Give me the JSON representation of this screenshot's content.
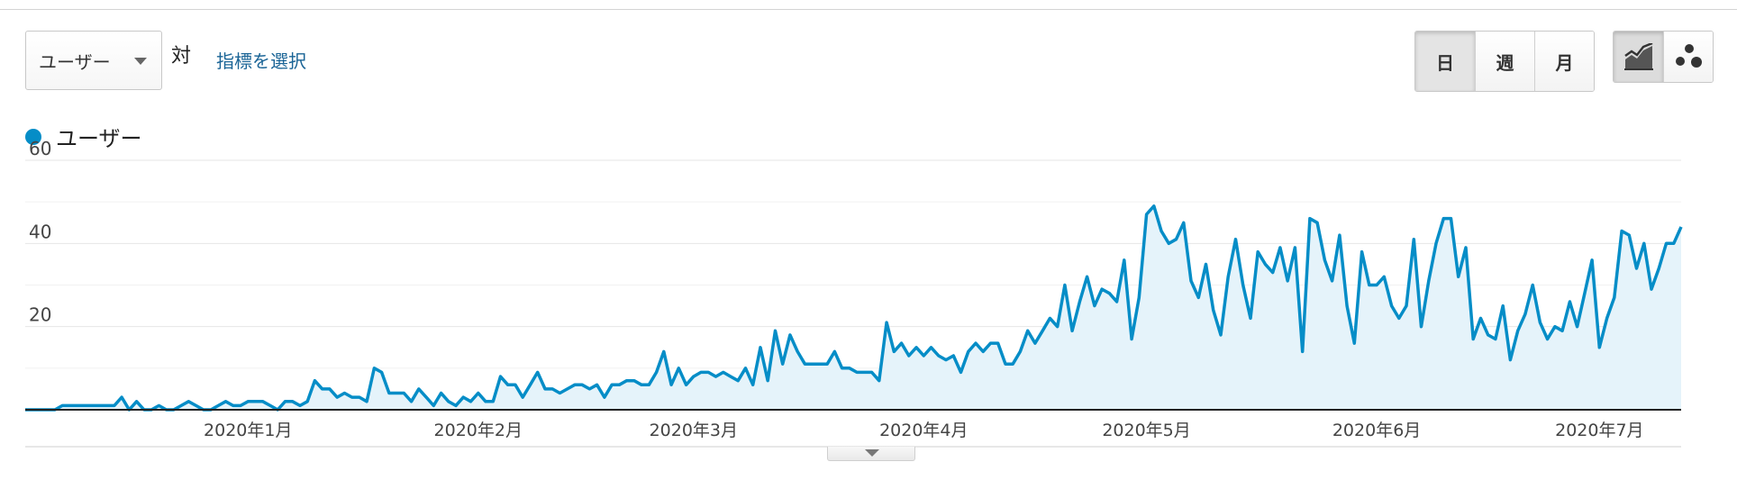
{
  "controls": {
    "metric_select": "ユーザー",
    "vs_label": "対",
    "select_metric_link": "指標を選択",
    "period_buttons": [
      "日",
      "週",
      "月"
    ],
    "active_period": "日",
    "view_icons": [
      "line-chart-icon",
      "motion-chart-icon"
    ]
  },
  "colors": {
    "series": "#058dc7",
    "fill": "#e5f3fa",
    "link": "#1a6496"
  },
  "chart_data": {
    "type": "area",
    "series": [
      {
        "name": "ユーザー",
        "values": [
          0,
          0,
          0,
          0,
          0,
          1,
          1,
          1,
          1,
          1,
          1,
          1,
          1,
          3,
          0,
          2,
          0,
          0,
          1,
          0,
          0,
          1,
          2,
          1,
          0,
          0,
          1,
          2,
          1,
          1,
          2,
          2,
          2,
          1,
          0,
          2,
          2,
          1,
          2,
          7,
          5,
          5,
          3,
          4,
          3,
          3,
          2,
          10,
          9,
          4,
          4,
          4,
          2,
          5,
          3,
          1,
          4,
          2,
          1,
          3,
          2,
          4,
          2,
          2,
          8,
          6,
          6,
          3,
          6,
          9,
          5,
          5,
          4,
          5,
          6,
          6,
          5,
          6,
          3,
          6,
          6,
          7,
          7,
          6,
          6,
          9,
          14,
          6,
          10,
          6,
          8,
          9,
          9,
          8,
          9,
          8,
          7,
          10,
          6,
          15,
          7,
          19,
          11,
          18,
          14,
          11,
          11,
          11,
          11,
          14,
          10,
          10,
          9,
          9,
          9,
          7,
          21,
          14,
          16,
          13,
          15,
          13,
          15,
          13,
          12,
          13,
          9,
          14,
          16,
          14,
          16,
          16,
          11,
          11,
          14,
          19,
          16,
          19,
          22,
          20,
          30,
          19,
          26,
          32,
          25,
          29,
          28,
          26,
          36,
          17,
          27,
          47,
          49,
          43,
          40,
          41,
          45,
          31,
          27,
          35,
          24,
          18,
          32,
          41,
          30,
          22,
          38,
          35,
          33,
          39,
          31,
          39,
          14,
          46,
          45,
          36,
          31,
          42,
          25,
          16,
          38,
          30,
          30,
          32,
          25,
          22,
          25,
          41,
          20,
          31,
          40,
          46,
          46,
          32,
          39,
          17,
          22,
          18,
          17,
          25,
          12,
          19,
          23,
          30,
          21,
          17,
          20,
          19,
          26,
          20,
          28,
          36,
          15,
          22,
          27,
          43,
          42,
          34,
          40,
          29,
          34,
          40,
          40,
          44
        ]
      }
    ],
    "y_ticks": [
      20,
      40,
      60
    ],
    "ylim": [
      0,
      60
    ],
    "x_tick_labels": [
      "2020年1月",
      "2020年2月",
      "2020年3月",
      "2020年4月",
      "2020年5月",
      "2020年6月",
      "2020年7月"
    ],
    "x_tick_index": [
      30,
      61,
      90,
      121,
      151,
      182,
      212
    ],
    "title": "",
    "xlabel": "",
    "ylabel": "",
    "grid": true,
    "legend_position": "top-left"
  }
}
